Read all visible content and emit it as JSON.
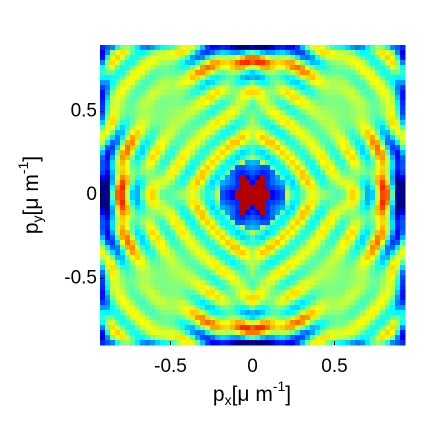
{
  "chart_data": {
    "type": "heatmap",
    "x_label": {
      "base": "p",
      "sub": "x",
      "unit": "[μ m",
      "exp": "-1",
      "close": "]"
    },
    "y_label": {
      "base": "p",
      "sub": "y",
      "unit": "[μ m",
      "exp": "-1",
      "close": "]"
    },
    "xlim": [
      -0.93,
      0.93
    ],
    "ylim": [
      -0.9,
      0.9
    ],
    "xticks": [
      -0.5,
      0,
      0.5
    ],
    "yticks": [
      -0.5,
      0,
      0.5
    ],
    "colormap": "jet"
  }
}
